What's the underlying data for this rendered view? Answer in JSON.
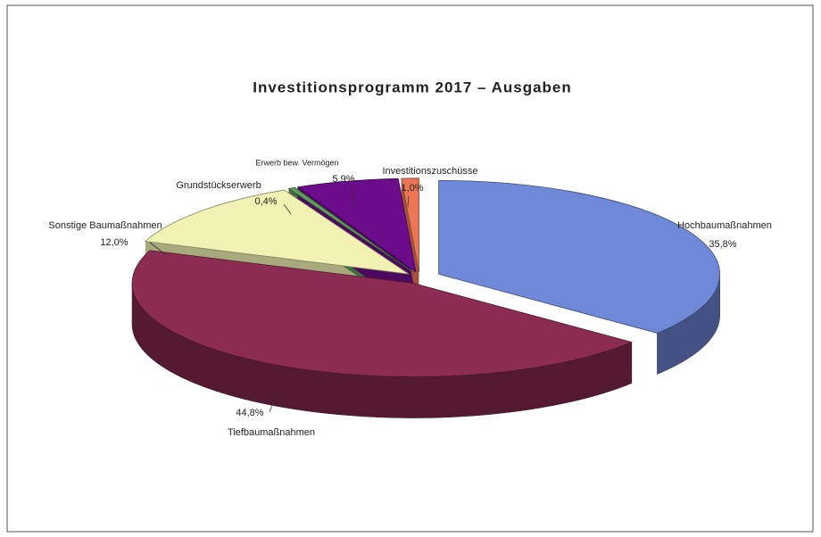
{
  "chart_data": {
    "type": "pie",
    "title": "Investitionsprogramm 2017 – Ausgaben",
    "categories": [
      "Hochbaumaßnahmen",
      "Tiefbaumaßnahmen",
      "Sonstige Baumaßnahmen",
      "Grundstückserwerb",
      "Erwerb bew. Vermögen",
      "Investitionszuschüsse"
    ],
    "values": [
      35.8,
      44.8,
      12.0,
      0.4,
      5.9,
      1.0
    ],
    "value_labels": [
      "35,8%",
      "44,8%",
      "12,0%",
      "0,4%",
      "5,9%",
      "1,0%"
    ],
    "colors": [
      "#6f89d8",
      "#8c2c52",
      "#f2f1b4",
      "#5e9c5c",
      "#6c0c8a",
      "#ea7655"
    ]
  }
}
